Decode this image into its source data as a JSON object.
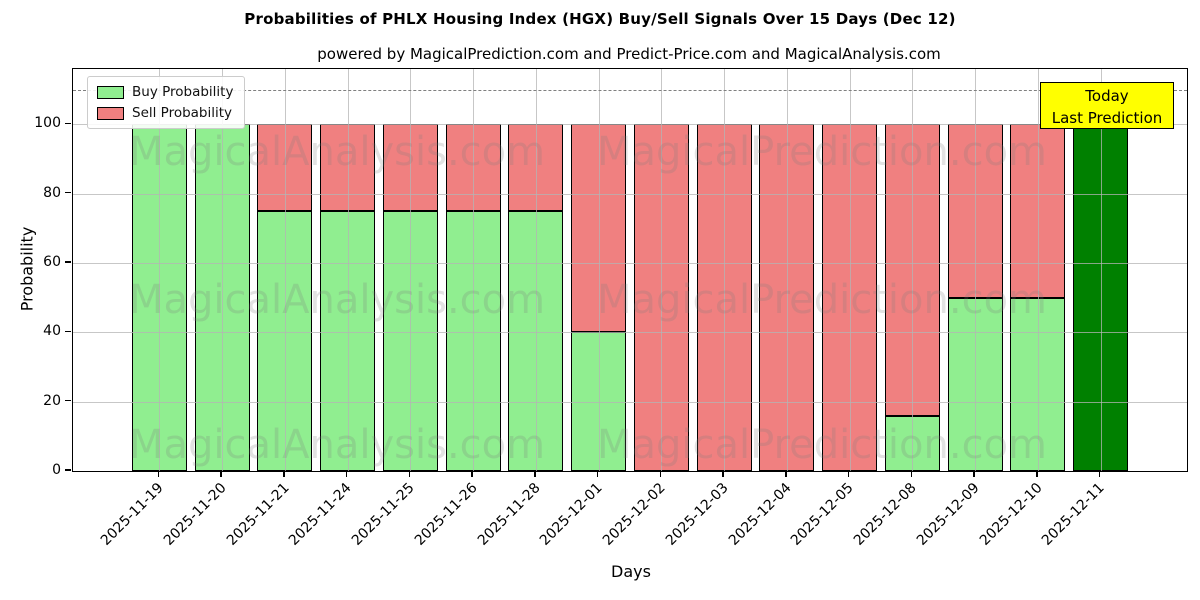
{
  "title": "Probabilities of PHLX Housing Index (HGX) Buy/Sell Signals Over 15 Days (Dec 12)",
  "subtitle": "powered by MagicalPrediction.com and Predict-Price.com and MagicalAnalysis.com",
  "axes": {
    "x_label": "Days",
    "y_label": "Probability",
    "y_ticks": [
      0,
      20,
      40,
      60,
      80,
      100
    ],
    "y_max": 116,
    "threshold_y": 110
  },
  "legend": [
    {
      "label": "Buy Probability",
      "color": "#90EE90"
    },
    {
      "label": "Sell Probability",
      "color": "#F08080"
    }
  ],
  "annotation": {
    "line1": "Today",
    "line2": "Last Prediction",
    "bg_color": "#FFFF00"
  },
  "watermarks": [
    "MagicalAnalysis.com",
    "MagicalPrediction.com"
  ],
  "colors": {
    "buy": "#90EE90",
    "sell": "#F08080",
    "today_bar": "#008000",
    "grid": "#b4b4b4",
    "threshold_line": "#7f7f7f"
  },
  "chart_data": {
    "type": "bar",
    "stacked": true,
    "title": "Probabilities of PHLX Housing Index (HGX) Buy/Sell Signals Over 15 Days (Dec 12)",
    "xlabel": "Days",
    "ylabel": "Probability",
    "ylim": [
      0,
      116
    ],
    "grid": true,
    "legend_position": "upper left",
    "categories": [
      "2025-11-19",
      "2025-11-20",
      "2025-11-21",
      "2025-11-24",
      "2025-11-25",
      "2025-11-26",
      "2025-11-28",
      "2025-12-01",
      "2025-12-02",
      "2025-12-03",
      "2025-12-04",
      "2025-12-05",
      "2025-12-08",
      "2025-12-09",
      "2025-12-10",
      "2025-12-11"
    ],
    "series": [
      {
        "name": "Buy Probability",
        "color": "#90EE90",
        "values": [
          100,
          100,
          75,
          75,
          75,
          75,
          75,
          40,
          0,
          0,
          0,
          0,
          16,
          50,
          50,
          100
        ]
      },
      {
        "name": "Sell Probability",
        "color": "#F08080",
        "values": [
          0,
          0,
          25,
          25,
          25,
          25,
          25,
          60,
          100,
          100,
          100,
          100,
          84,
          50,
          50,
          0
        ]
      }
    ],
    "today_index": 15,
    "today_color": "#008000",
    "threshold_dashed_line_y": 110
  }
}
